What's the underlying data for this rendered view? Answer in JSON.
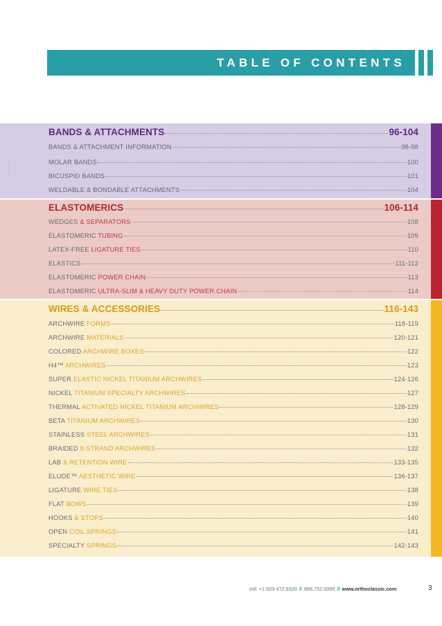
{
  "header": {
    "title": "TABLE OF CONTENTS"
  },
  "sections": [
    {
      "heading": "BANDS & ATTACHMENTS",
      "pages": "96-104",
      "entries": [
        {
          "prefix": "BANDS & ATTACHMENT INFORMATION",
          "accent": "",
          "pages": "98-98"
        },
        {
          "prefix": "MOLAR BANDS",
          "accent": "",
          "pages": "100"
        },
        {
          "prefix": "BICUSPID BANDS",
          "accent": "",
          "pages": "101"
        },
        {
          "prefix": "WELDABLE & BONDABLE ATTACHMENTS",
          "accent": "",
          "pages": "104"
        }
      ]
    },
    {
      "heading": "ELASTOMERICS",
      "pages": "106-114",
      "entries": [
        {
          "prefix": "WEDGES ",
          "accent": "& SEPARATORS",
          "pages": "108"
        },
        {
          "prefix": "ELASTOMERIC ",
          "accent": "TUBING",
          "pages": "109"
        },
        {
          "prefix": "LATEX-FREE ",
          "accent": "LIGATURE TIES",
          "pages": "110"
        },
        {
          "prefix": "ELASTICS",
          "accent": "",
          "pages": "111-112"
        },
        {
          "prefix": "ELASTOMERIC ",
          "accent": "POWER CHAIN",
          "pages": "113"
        },
        {
          "prefix": "ELASTOMERIC ",
          "accent": "ULTRA-SLIM & HEAVY DUTY POWER CHAIN",
          "pages": "114"
        }
      ]
    },
    {
      "heading": "WIRES & ACCESSORIES",
      "pages": "116-143",
      "entries": [
        {
          "prefix": "ARCHWIRE ",
          "accent": "FORMS",
          "pages": "118-119"
        },
        {
          "prefix": "ARCHWIRE ",
          "accent": "MATERIALS",
          "pages": "120-121"
        },
        {
          "prefix": "COLORED ",
          "accent": "ARCHWIRE BOXES",
          "pages": "122"
        },
        {
          "prefix": "H4™ ",
          "accent": "ARCHWIRES",
          "pages": "123"
        },
        {
          "prefix": "SUPER ",
          "accent": "ELASTIC NICKEL TITANIUM ARCHWIRES",
          "pages": "124-126"
        },
        {
          "prefix": "NICKEL ",
          "accent": "TITANIUM SPECIALTY ARCHWIRES",
          "pages": "127"
        },
        {
          "prefix": "THERMAL ",
          "accent": "ACTIVATED NICKEL TITANIUM ARCHWIRES",
          "pages": "128-129"
        },
        {
          "prefix": "BETA ",
          "accent": "TITANIUM ARCHWIRES",
          "pages": "130"
        },
        {
          "prefix": "STAINLESS ",
          "accent": "STEEL ARCHWIRES",
          "pages": "131"
        },
        {
          "prefix": "BRAIDED ",
          "accent": "8-STRAND ARCHWIRES",
          "pages": "132"
        },
        {
          "prefix": "LAB ",
          "accent": "& RETENTION WIRE",
          "pages": "133-135"
        },
        {
          "prefix": "ELUDE™ ",
          "accent": "AESTHETIC WIRE",
          "pages": "136-137"
        },
        {
          "prefix": "LIGATURE ",
          "accent": "WIRE TIES",
          "pages": "138"
        },
        {
          "prefix": "FLAT ",
          "accent": "BOWS",
          "pages": "139"
        },
        {
          "prefix": "HOOKS ",
          "accent": "& STOPS",
          "pages": "140"
        },
        {
          "prefix": "OPEN ",
          "accent": "COIL SPRINGS",
          "pages": "141"
        },
        {
          "prefix": "SPECIALTY ",
          "accent": "SPRINGS",
          "pages": "142-143"
        }
      ]
    }
  ],
  "footer": {
    "intl": "Intl: +1.503.472.8320",
    "separator": "//",
    "phone": "866.752.0065",
    "website": "www.orthoclassic.com",
    "page_number": "3"
  },
  "colors": {
    "teal": "#2a9ea6",
    "purple": "#6b2c8c",
    "red": "#bb2430",
    "gold": "#f4b71f"
  }
}
